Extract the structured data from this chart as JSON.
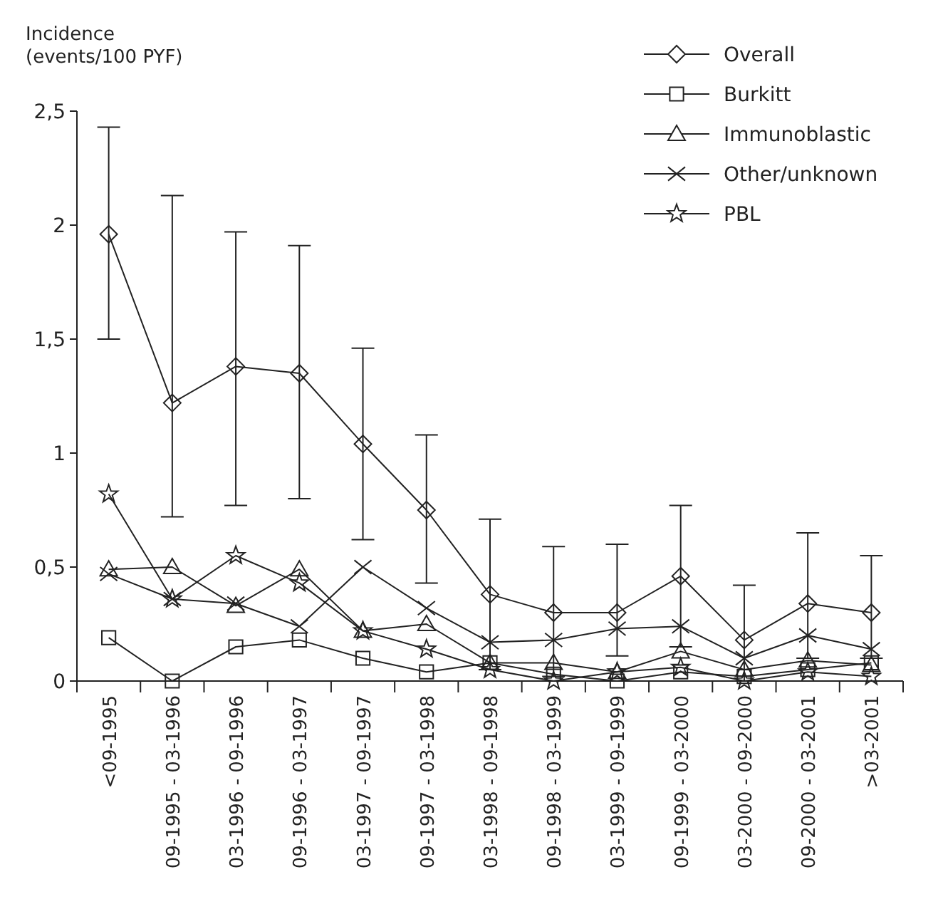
{
  "chart_data": {
    "type": "line",
    "ylabel": "Incidence\n(events/100 PYF)",
    "categories": [
      "<09-1995",
      "09-1995 - 03-1996",
      "03-1996 - 09-1996",
      "09-1996 - 03-1997",
      "03-1997 - 09-1997",
      "09-1997 - 03-1998",
      "03-1998 - 09-1998",
      "09-1998 - 03-1999",
      "03-1999 - 09-1999",
      "09-1999 - 03-2000",
      "03-2000 - 09-2000",
      "09-2000 - 03-2001",
      ">03-2001"
    ],
    "series": [
      {
        "name": "Overall",
        "color": "#222222",
        "marker": "diamond",
        "values": [
          1.96,
          1.22,
          1.38,
          1.35,
          1.04,
          0.75,
          0.38,
          0.3,
          0.3,
          0.46,
          0.18,
          0.34,
          0.3
        ],
        "errors": [
          [
            1.5,
            2.43
          ],
          [
            0.72,
            2.13
          ],
          [
            0.77,
            1.97
          ],
          [
            0.8,
            1.91
          ],
          [
            0.62,
            1.46
          ],
          [
            0.43,
            1.08
          ],
          [
            0.05,
            0.71
          ],
          [
            0.02,
            0.59
          ],
          [
            0.11,
            0.6
          ],
          [
            0.15,
            0.77
          ],
          [
            0,
            0.42
          ],
          [
            0.1,
            0.65
          ],
          [
            0.1,
            0.55
          ]
        ]
      },
      {
        "name": "Burkitt",
        "color": "#222222",
        "marker": "square",
        "values": [
          0.19,
          0,
          0.15,
          0.18,
          0.1,
          0.04,
          0.08,
          0.03,
          0,
          0.04,
          0.02,
          0.05,
          0.08
        ]
      },
      {
        "name": "Immunoblastic",
        "color": "#222222",
        "marker": "triangle",
        "values": [
          0.49,
          0.5,
          0.33,
          0.49,
          0.22,
          0.25,
          0.08,
          0.08,
          0.04,
          0.13,
          0.05,
          0.09,
          0.07
        ]
      },
      {
        "name": "Other/unknown",
        "color": "#222222",
        "marker": "cross",
        "values": [
          0.47,
          0.36,
          0.34,
          0.24,
          0.5,
          0.32,
          0.17,
          0.18,
          0.23,
          0.24,
          0.1,
          0.2,
          0.14
        ]
      },
      {
        "name": "PBL",
        "color": "#222222",
        "marker": "star",
        "values": [
          0.82,
          0.36,
          0.55,
          0.43,
          0.22,
          0.14,
          0.05,
          0,
          0.04,
          0.06,
          0,
          0.04,
          0.02
        ]
      }
    ],
    "ylim": [
      0,
      2.5
    ],
    "yticks": [
      0,
      {
        "value": 0.5,
        "label": "0,5"
      },
      1,
      {
        "value": 1.5,
        "label": "1,5"
      },
      2,
      {
        "value": 2.5,
        "label": "2,5"
      }
    ],
    "grid": false,
    "legend": "top right",
    "line_style": "solid"
  }
}
